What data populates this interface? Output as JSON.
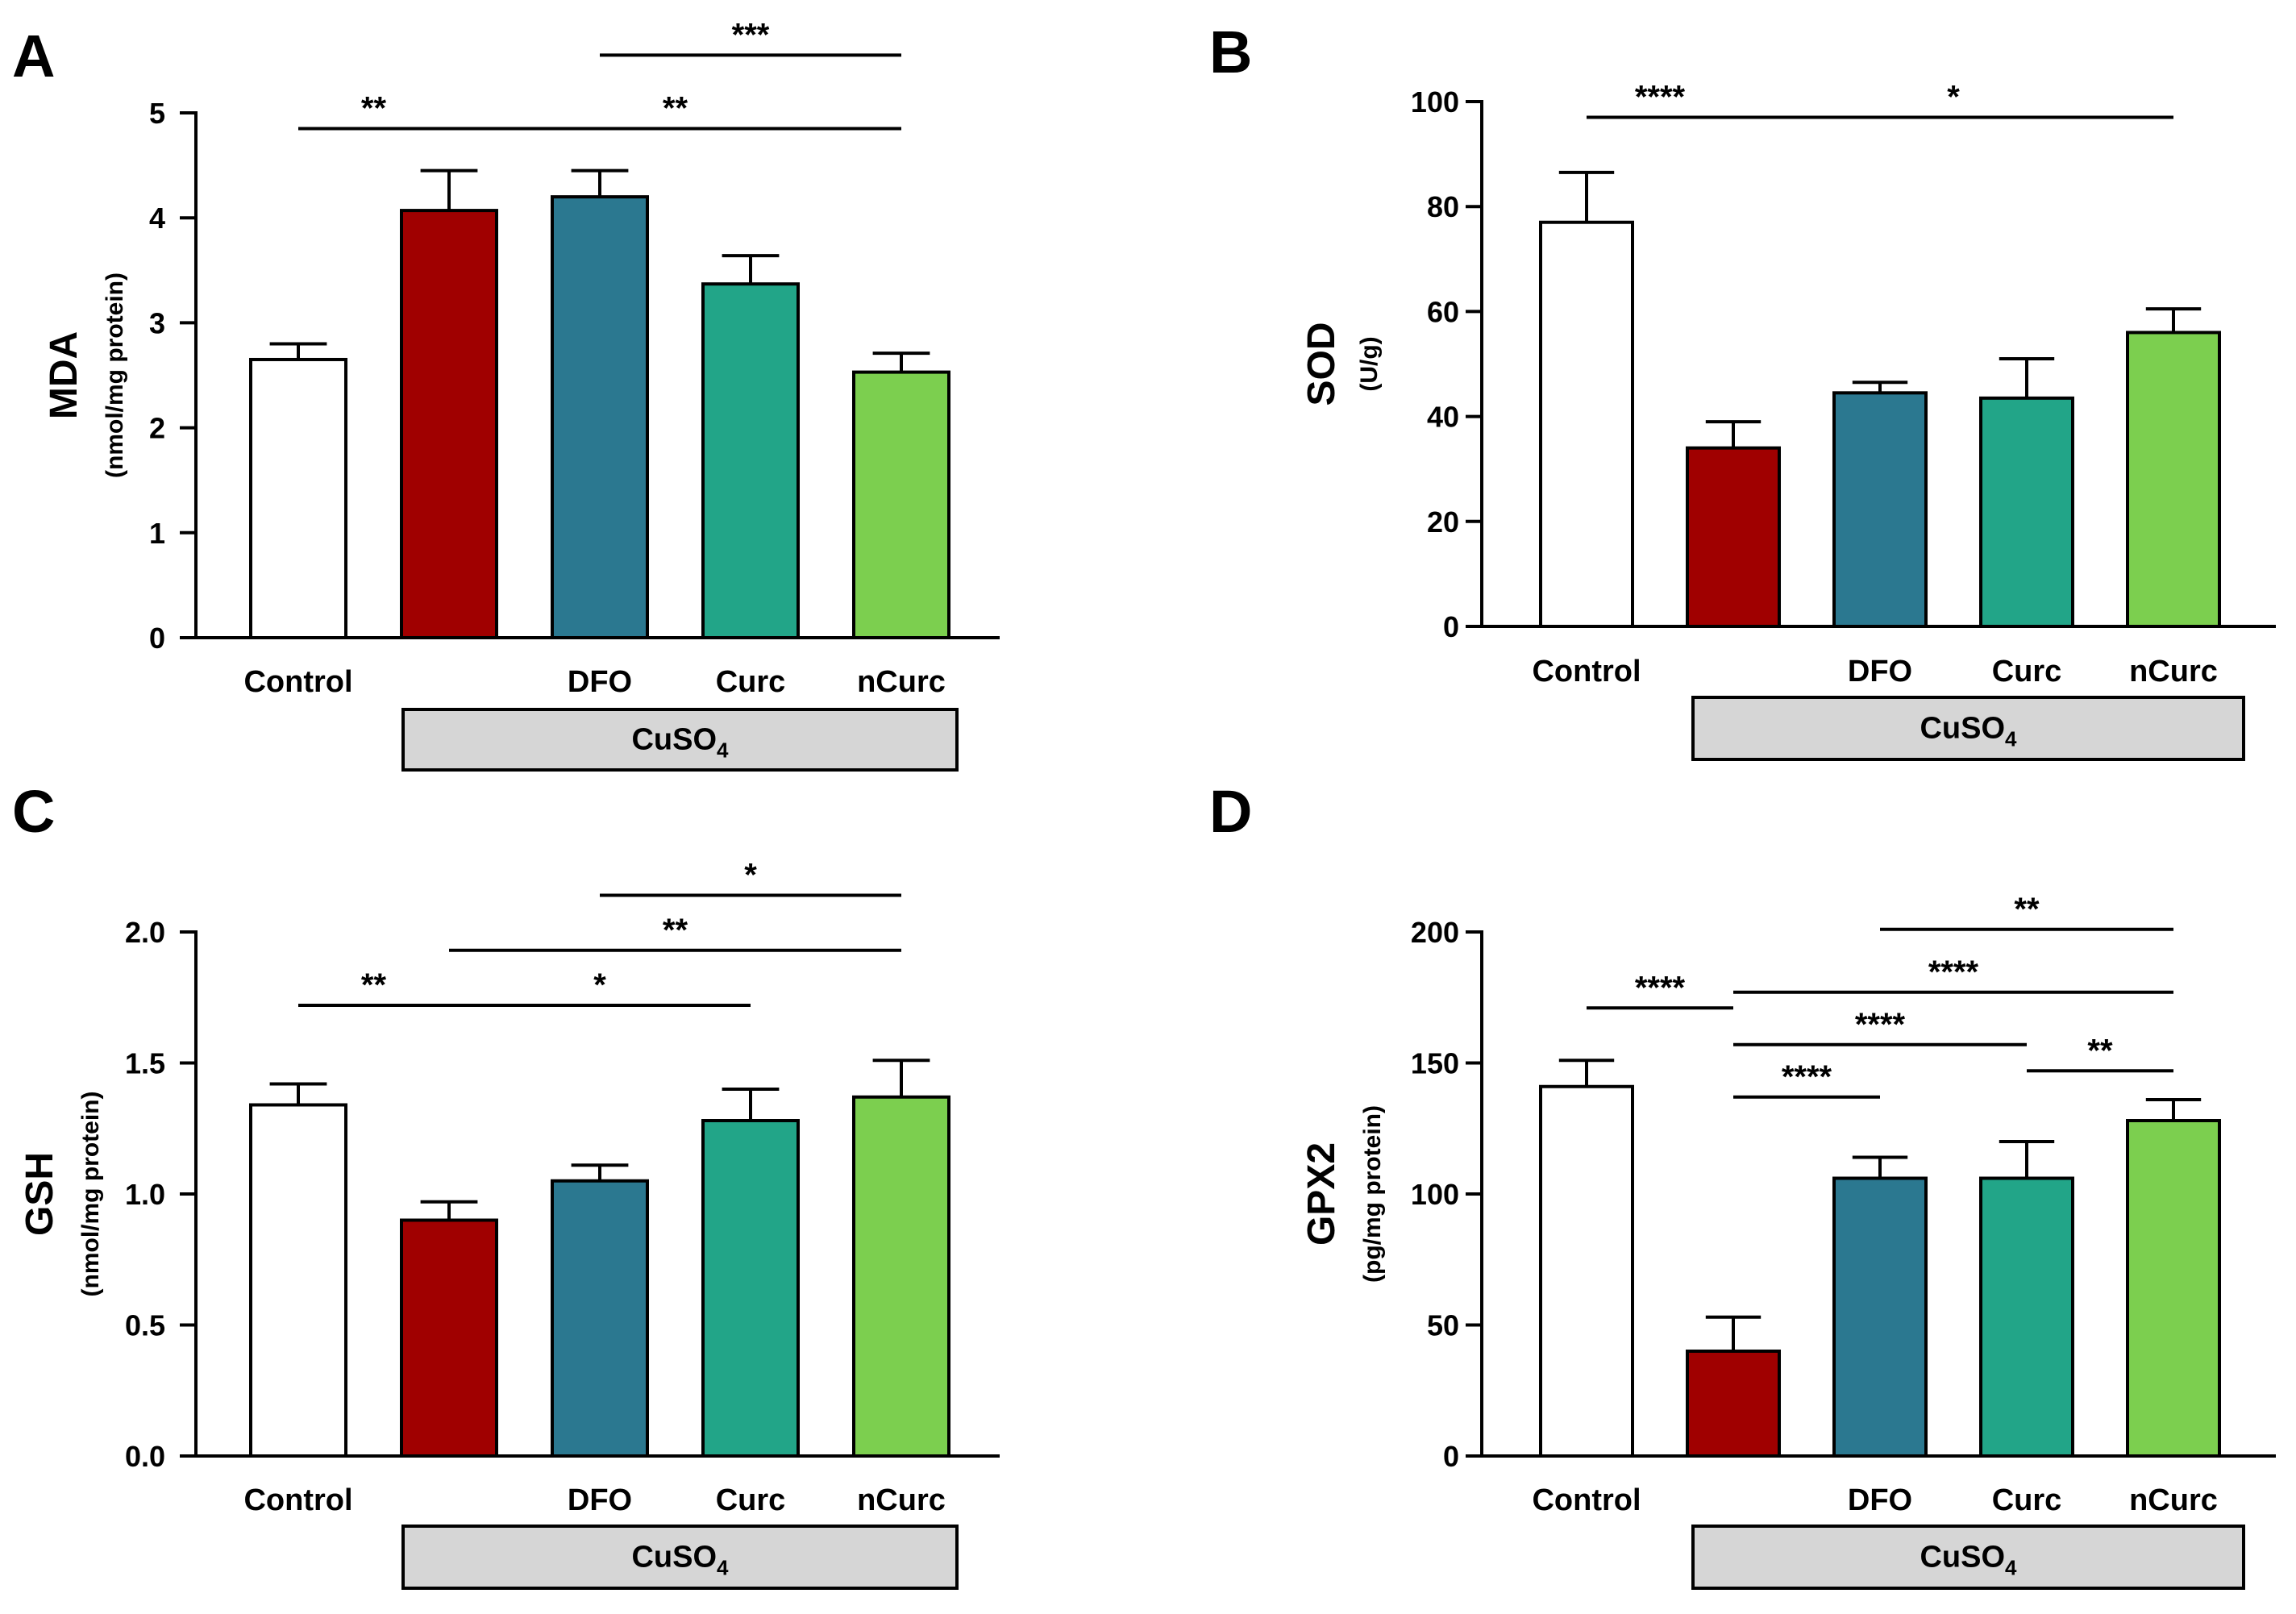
{
  "colors": {
    "control": "#ffffff",
    "cuso4": "#a00000",
    "dfo": "#2b7890",
    "curc": "#22a588",
    "ncurc": "#7ccf4f",
    "axis": "#000000",
    "group_box": "#d6d6d6"
  },
  "chart_data": [
    {
      "panel": "A",
      "type": "bar",
      "ylabel": "MDA",
      "ylabel_unit": "(nmol/mg protein)",
      "ylim": [
        0,
        5
      ],
      "yticks": [
        0,
        1,
        2,
        3,
        4,
        5
      ],
      "ytick_labels": [
        "0",
        "1",
        "2",
        "3",
        "4",
        "5"
      ],
      "categories": [
        "Control",
        "",
        "DFO",
        "Curc",
        "nCurc"
      ],
      "values": [
        2.65,
        4.07,
        4.2,
        3.37,
        2.53
      ],
      "errors": [
        0.15,
        0.38,
        0.25,
        0.27,
        0.18
      ],
      "group_label": {
        "base": "CuSO",
        "sub": "4"
      },
      "significance": [
        {
          "from": 0,
          "to": 1,
          "label": "**",
          "y": 4.85
        },
        {
          "from": 1,
          "to": 4,
          "label": "**",
          "y": 4.85
        },
        {
          "from": 2,
          "to": 4,
          "label": "***",
          "y": 5.55
        }
      ]
    },
    {
      "panel": "B",
      "type": "bar",
      "ylabel": "SOD",
      "ylabel_unit": "(U/g)",
      "ylim": [
        0,
        100
      ],
      "yticks": [
        0,
        20,
        40,
        60,
        80,
        100
      ],
      "ytick_labels": [
        "0",
        "20",
        "40",
        "60",
        "80",
        "100"
      ],
      "categories": [
        "Control",
        "",
        "DFO",
        "Curc",
        "nCurc"
      ],
      "values": [
        77,
        34,
        44.5,
        43.5,
        56
      ],
      "errors": [
        9.5,
        5,
        2,
        7.5,
        4.5
      ],
      "group_label": {
        "base": "CuSO",
        "sub": "4"
      },
      "significance": [
        {
          "from": 0,
          "to": 1,
          "label": "****",
          "y": 97
        },
        {
          "from": 1,
          "to": 4,
          "label": "*",
          "y": 97
        }
      ]
    },
    {
      "panel": "C",
      "type": "bar",
      "ylabel": "GSH",
      "ylabel_unit": "(nmol/mg protein)",
      "ylim": [
        0,
        2
      ],
      "yticks": [
        0,
        0.5,
        1,
        1.5,
        2
      ],
      "ytick_labels": [
        "0.0",
        "0.5",
        "1.0",
        "1.5",
        "2.0"
      ],
      "categories": [
        "Control",
        "",
        "DFO",
        "Curc",
        "nCurc"
      ],
      "values": [
        1.34,
        0.9,
        1.05,
        1.28,
        1.37
      ],
      "errors": [
        0.08,
        0.07,
        0.06,
        0.12,
        0.14
      ],
      "group_label": {
        "base": "CuSO",
        "sub": "4"
      },
      "significance": [
        {
          "from": 0,
          "to": 1,
          "label": "**",
          "y": 1.72
        },
        {
          "from": 1,
          "to": 3,
          "label": "*",
          "y": 1.72
        },
        {
          "from": 1,
          "to": 4,
          "label": "**",
          "y": 1.93
        },
        {
          "from": 2,
          "to": 4,
          "label": "*",
          "y": 2.14
        }
      ]
    },
    {
      "panel": "D",
      "type": "bar",
      "ylabel": "GPX2",
      "ylabel_unit": "(pg/mg protein)",
      "ylim": [
        0,
        200
      ],
      "yticks": [
        0,
        50,
        100,
        150,
        200
      ],
      "ytick_labels": [
        "0",
        "50",
        "100",
        "150",
        "200"
      ],
      "categories": [
        "Control",
        "",
        "DFO",
        "Curc",
        "nCurc"
      ],
      "values": [
        141,
        40,
        106,
        106,
        128
      ],
      "errors": [
        10,
        13,
        8,
        14,
        8
      ],
      "group_label": {
        "base": "CuSO",
        "sub": "4"
      },
      "significance": [
        {
          "from": 1,
          "to": 2,
          "label": "****",
          "y": 137
        },
        {
          "from": 3,
          "to": 4,
          "label": "**",
          "y": 147
        },
        {
          "from": 1,
          "to": 3,
          "label": "****",
          "y": 157
        },
        {
          "from": 0,
          "to": 1,
          "label": "****",
          "y": 171
        },
        {
          "from": 1,
          "to": 4,
          "label": "****",
          "y": 177
        },
        {
          "from": 2,
          "to": 4,
          "label": "**",
          "y": 201
        }
      ]
    }
  ]
}
